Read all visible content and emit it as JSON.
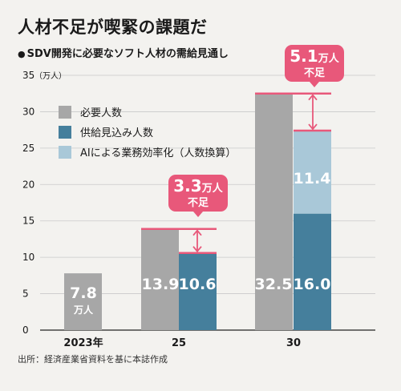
{
  "title": "人材不足が喫緊の課題だ",
  "subtitle": "SDV開発に必要なソフト人材の需給見通し",
  "source": "出所：経済産業省資料を基に本誌作成",
  "chart_data": {
    "type": "bar",
    "title": "人材不足が喫緊の課題だ",
    "subtitle": "SDV開発に必要なソフト人材の需給見通し",
    "unit_label": "（万人）",
    "y_ticks": [
      0,
      5,
      10,
      15,
      20,
      25,
      30,
      35
    ],
    "ylim": [
      0,
      35
    ],
    "categories": [
      "2023年",
      "25",
      "30"
    ],
    "grid": true,
    "legend_position": "top-left",
    "series": [
      {
        "name": "必要人数",
        "color": "#a7a7a7",
        "values": [
          7.8,
          13.9,
          32.5
        ]
      },
      {
        "name": "供給見込み人数",
        "color": "#457f9c",
        "values": [
          null,
          10.6,
          16.0
        ]
      },
      {
        "name": "AIによる業務効率化（人数換算）",
        "color": "#a9c8d8",
        "values": [
          null,
          null,
          11.4
        ]
      }
    ],
    "value_labels": {
      "2023": {
        "value": "7.8",
        "unit": "万人"
      },
      "required_2025": "13.9",
      "supply_2025": "10.6",
      "required_2030": "32.5",
      "supply_2030": "16.0",
      "ai_2030": "11.4"
    },
    "shortage_callouts": [
      {
        "category": "25",
        "value": "3.3",
        "unit": "万人",
        "label": "不足"
      },
      {
        "category": "30",
        "value": "5.1",
        "unit": "万人",
        "label": "不足"
      }
    ],
    "colors": {
      "accent": "#e8587a",
      "grid": "#c9c9c9",
      "axis": "#222222"
    }
  }
}
